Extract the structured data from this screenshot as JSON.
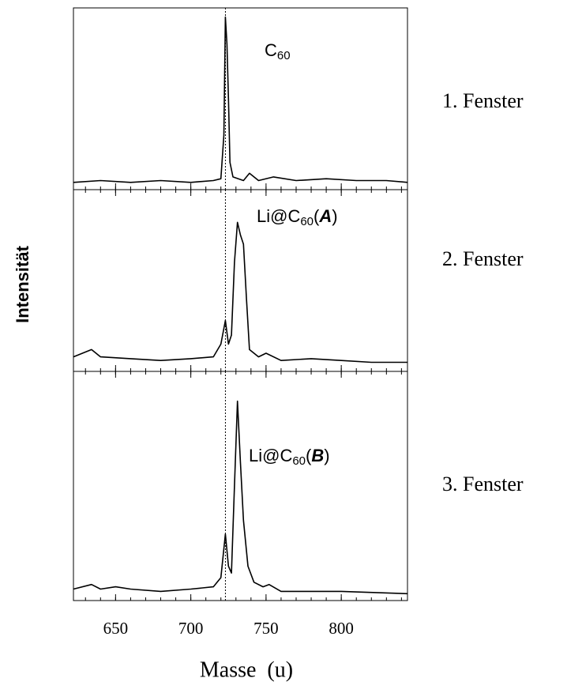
{
  "chart_data": [
    {
      "type": "line",
      "window_label": "1. Fenster",
      "annotation_parts": [
        {
          "text": "C"
        },
        {
          "text": "60",
          "style": "sub"
        }
      ],
      "x": [
        622,
        640,
        660,
        680,
        700,
        715,
        720,
        722,
        723,
        724,
        725,
        726,
        728,
        735,
        739,
        745,
        755,
        770,
        790,
        810,
        830,
        844
      ],
      "values": [
        0.04,
        0.05,
        0.04,
        0.05,
        0.04,
        0.05,
        0.06,
        0.3,
        0.95,
        0.8,
        0.5,
        0.15,
        0.07,
        0.05,
        0.09,
        0.05,
        0.07,
        0.05,
        0.06,
        0.05,
        0.05,
        0.04
      ],
      "color": "#000000",
      "xlim": [
        622,
        844
      ],
      "ylim": [
        0,
        1
      ],
      "xticks": [
        650,
        700,
        750,
        800
      ],
      "minor_step": 10,
      "show_tick_labels": false,
      "reference_x": 723
    },
    {
      "type": "line",
      "window_label": "2. Fenster",
      "ylabel": "Intensität",
      "annotation_parts": [
        {
          "text": "Li@C"
        },
        {
          "text": "60",
          "style": "sub"
        },
        {
          "text": "("
        },
        {
          "text": "A",
          "style": "bold-italic"
        },
        {
          "text": ")"
        }
      ],
      "x": [
        622,
        634,
        640,
        660,
        680,
        700,
        715,
        720,
        723,
        725,
        727,
        729,
        731,
        733,
        735,
        737,
        739,
        745,
        750,
        760,
        780,
        800,
        820,
        844
      ],
      "values": [
        0.08,
        0.12,
        0.08,
        0.07,
        0.06,
        0.07,
        0.08,
        0.15,
        0.28,
        0.15,
        0.2,
        0.6,
        0.82,
        0.75,
        0.7,
        0.4,
        0.12,
        0.08,
        0.1,
        0.06,
        0.07,
        0.06,
        0.05,
        0.05
      ],
      "color": "#000000",
      "xlim": [
        622,
        844
      ],
      "ylim": [
        0,
        1
      ],
      "xticks": [
        650,
        700,
        750,
        800
      ],
      "minor_step": 10,
      "show_tick_labels": false,
      "reference_x": 723
    },
    {
      "type": "line",
      "window_label": "3. Fenster",
      "xlabel": "Masse  (u)",
      "annotation_parts": [
        {
          "text": "Li@C"
        },
        {
          "text": "60",
          "style": "sub"
        },
        {
          "text": "("
        },
        {
          "text": "B",
          "style": "bold-italic"
        },
        {
          "text": ")"
        }
      ],
      "x": [
        622,
        634,
        640,
        650,
        660,
        680,
        700,
        715,
        720,
        723,
        725,
        727,
        729,
        731,
        733,
        735,
        738,
        742,
        748,
        752,
        760,
        800,
        844
      ],
      "values": [
        0.05,
        0.07,
        0.05,
        0.06,
        0.05,
        0.04,
        0.05,
        0.06,
        0.1,
        0.29,
        0.15,
        0.12,
        0.5,
        0.87,
        0.6,
        0.35,
        0.15,
        0.08,
        0.06,
        0.07,
        0.04,
        0.04,
        0.03
      ],
      "color": "#000000",
      "xlim": [
        622,
        844
      ],
      "ylim": [
        0,
        1
      ],
      "xticks": [
        650,
        700,
        750,
        800
      ],
      "minor_step": 10,
      "show_tick_labels": true,
      "reference_x": 723
    }
  ]
}
